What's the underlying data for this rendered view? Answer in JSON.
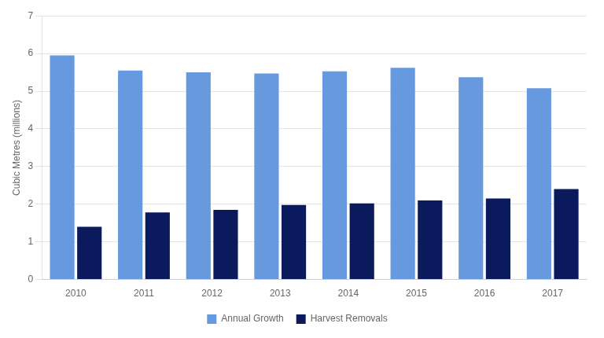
{
  "chart_data": {
    "type": "bar",
    "categories": [
      "2010",
      "2011",
      "2012",
      "2013",
      "2014",
      "2015",
      "2016",
      "2017"
    ],
    "series": [
      {
        "name": "Annual Growth",
        "color": "#6699dd",
        "values": [
          5.95,
          5.55,
          5.5,
          5.47,
          5.53,
          5.62,
          5.37,
          5.08
        ]
      },
      {
        "name": "Harvest Removals",
        "color": "#0a1a5c",
        "values": [
          1.4,
          1.78,
          1.85,
          1.98,
          2.02,
          2.1,
          2.15,
          2.4
        ]
      }
    ],
    "ylabel": "Cubic Metres (millions)",
    "ylim": [
      0,
      7
    ],
    "yticks": [
      0,
      1,
      2,
      3,
      4,
      5,
      6,
      7
    ],
    "grid": true,
    "legend": "bottom"
  }
}
